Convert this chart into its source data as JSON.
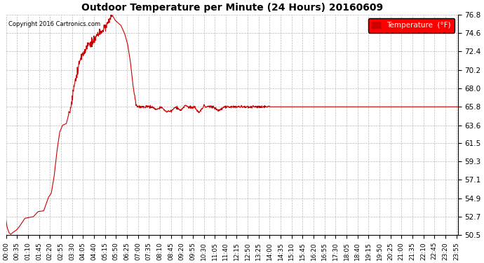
{
  "title": "Outdoor Temperature per Minute (24 Hours) 20160609",
  "copyright_text": "Copyright 2016 Cartronics.com",
  "legend_label": "Temperature  (°F)",
  "line_color": "#cc0000",
  "background_color": "#ffffff",
  "grid_color": "#aaaaaa",
  "ylim": [
    50.5,
    76.8
  ],
  "yticks": [
    50.5,
    52.7,
    54.9,
    57.1,
    59.3,
    61.5,
    63.6,
    65.8,
    68.0,
    70.2,
    72.4,
    74.6,
    76.8
  ],
  "x_tick_labels": [
    "00:00",
    "00:35",
    "01:10",
    "01:45",
    "02:20",
    "02:55",
    "03:30",
    "04:05",
    "04:40",
    "05:15",
    "05:50",
    "06:25",
    "07:00",
    "07:35",
    "08:10",
    "08:45",
    "09:20",
    "09:55",
    "10:30",
    "11:05",
    "11:40",
    "12:15",
    "12:50",
    "13:25",
    "14:00",
    "14:35",
    "15:10",
    "15:45",
    "16:20",
    "16:55",
    "17:30",
    "18:05",
    "18:40",
    "19:15",
    "19:50",
    "20:25",
    "21:00",
    "21:35",
    "22:10",
    "22:45",
    "23:20",
    "23:55"
  ],
  "key_points": [
    [
      0,
      52.3
    ],
    [
      3,
      51.5
    ],
    [
      9,
      50.8
    ],
    [
      15,
      50.6
    ],
    [
      21,
      50.8
    ],
    [
      33,
      51.1
    ],
    [
      42,
      51.5
    ],
    [
      60,
      52.5
    ],
    [
      72,
      52.6
    ],
    [
      87,
      52.7
    ],
    [
      102,
      53.3
    ],
    [
      120,
      53.4
    ],
    [
      135,
      55.0
    ],
    [
      144,
      55.5
    ],
    [
      153,
      57.5
    ],
    [
      162,
      60.5
    ],
    [
      171,
      62.8
    ],
    [
      180,
      63.6
    ],
    [
      192,
      63.8
    ],
    [
      207,
      66.0
    ],
    [
      216,
      68.0
    ],
    [
      228,
      70.2
    ],
    [
      240,
      72.0
    ],
    [
      252,
      72.4
    ],
    [
      261,
      73.4
    ],
    [
      270,
      73.2
    ],
    [
      282,
      73.8
    ],
    [
      294,
      74.6
    ],
    [
      303,
      74.4
    ],
    [
      312,
      75.2
    ],
    [
      327,
      76.0
    ],
    [
      336,
      76.8
    ],
    [
      342,
      76.5
    ],
    [
      348,
      76.1
    ],
    [
      357,
      75.8
    ],
    [
      366,
      75.5
    ],
    [
      378,
      74.5
    ],
    [
      387,
      73.3
    ],
    [
      396,
      71.2
    ],
    [
      405,
      68.2
    ],
    [
      414,
      66.0
    ],
    [
      420,
      65.8
    ],
    [
      435,
      65.8
    ],
    [
      450,
      65.8
    ],
    [
      465,
      65.8
    ],
    [
      480,
      65.5
    ],
    [
      495,
      65.8
    ],
    [
      510,
      65.2
    ],
    [
      525,
      65.3
    ],
    [
      540,
      65.8
    ],
    [
      555,
      65.4
    ],
    [
      570,
      65.9
    ],
    [
      585,
      65.8
    ],
    [
      600,
      65.8
    ],
    [
      615,
      65.1
    ],
    [
      630,
      65.8
    ],
    [
      645,
      65.8
    ],
    [
      660,
      65.8
    ],
    [
      675,
      65.3
    ],
    [
      690,
      65.7
    ],
    [
      705,
      65.8
    ],
    [
      720,
      65.8
    ],
    [
      735,
      65.8
    ],
    [
      750,
      65.8
    ],
    [
      765,
      65.8
    ],
    [
      780,
      65.8
    ],
    [
      795,
      65.8
    ],
    [
      810,
      65.8
    ],
    [
      825,
      65.8
    ],
    [
      840,
      65.8
    ],
    [
      900,
      65.8
    ],
    [
      960,
      65.8
    ],
    [
      1020,
      65.8
    ],
    [
      1080,
      65.8
    ],
    [
      1140,
      65.8
    ],
    [
      1200,
      65.8
    ],
    [
      1260,
      65.8
    ],
    [
      1320,
      65.8
    ],
    [
      1380,
      65.8
    ],
    [
      1440,
      65.8
    ]
  ]
}
